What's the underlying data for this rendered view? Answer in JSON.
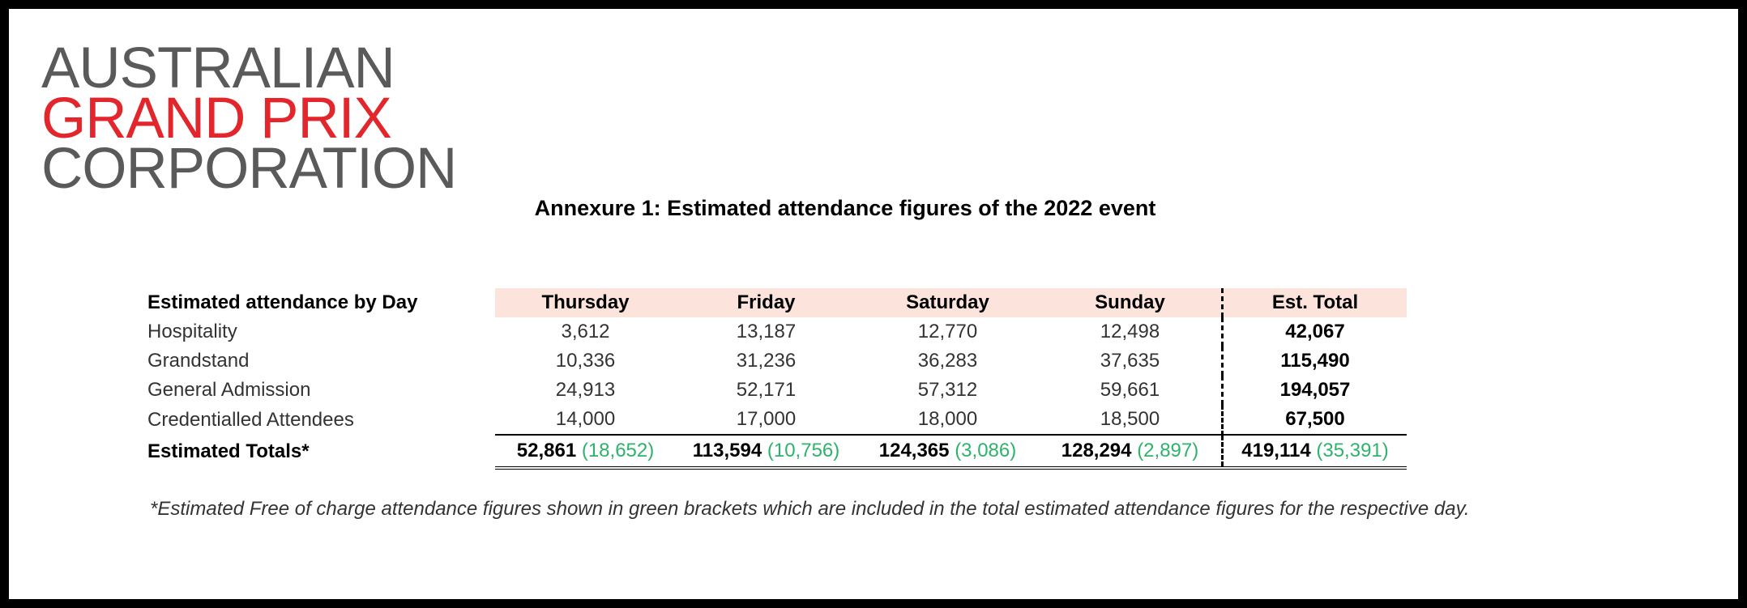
{
  "logo": {
    "line1": "AUSTRALIAN",
    "line2": "GRAND PRIX",
    "line3": "CORPORATION",
    "colors": {
      "grey": "#5a5a5a",
      "red": "#e2262b"
    }
  },
  "title": "Annexure 1: Estimated attendance figures of the 2022 event",
  "table": {
    "header": {
      "label": "Estimated attendance by Day",
      "days": [
        "Thursday",
        "Friday",
        "Saturday",
        "Sunday"
      ],
      "total": "Est. Total"
    },
    "rows": [
      {
        "label": "Hospitality",
        "values": [
          "3,612",
          "13,187",
          "12,770",
          "12,498"
        ],
        "total": "42,067"
      },
      {
        "label": "Grandstand",
        "values": [
          "10,336",
          "31,236",
          "36,283",
          "37,635"
        ],
        "total": "115,490"
      },
      {
        "label": "General Admission",
        "values": [
          "24,913",
          "52,171",
          "57,312",
          "59,661"
        ],
        "total": "194,057"
      },
      {
        "label": "Credentialled Attendees",
        "values": [
          "14,000",
          "17,000",
          "18,000",
          "18,500"
        ],
        "total": "67,500"
      }
    ],
    "totals": {
      "label": "Estimated Totals*",
      "values": [
        {
          "value": "52,861",
          "free": "(18,652)"
        },
        {
          "value": "113,594",
          "free": "(10,756)"
        },
        {
          "value": "124,365",
          "free": "(3,086)"
        },
        {
          "value": "128,294",
          "free": "(2,897)"
        }
      ],
      "total": {
        "value": "419,114",
        "free": "(35,391)"
      }
    },
    "colors": {
      "header_bg": "#fce4dc",
      "free_green": "#2db36b"
    }
  },
  "footnote": "*Estimated Free of charge attendance figures shown in green brackets which are included in the total estimated attendance figures for the respective day."
}
